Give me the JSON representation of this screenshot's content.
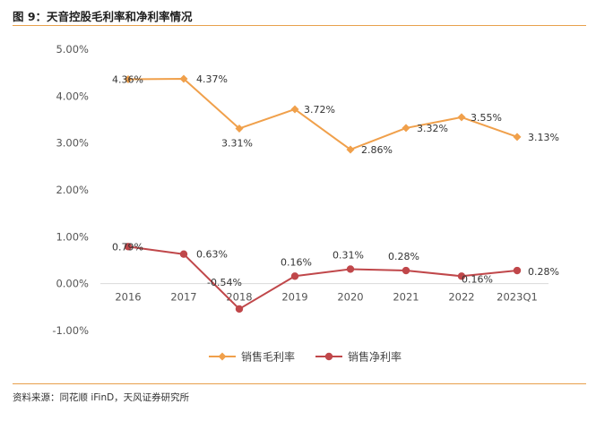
{
  "header": {
    "title": "图 9：天音控股毛利率和净利率情况"
  },
  "footer": {
    "source": "资料来源：同花顺 iFinD，天风证券研究所"
  },
  "colors": {
    "gross": "#f0a04b",
    "net": "#c0474a",
    "rule": "#e8a04c"
  },
  "chart_data": {
    "type": "line",
    "title": "天音控股毛利率和净利率情况",
    "xlabel": "",
    "ylabel": "",
    "categories": [
      "2016",
      "2017",
      "2018",
      "2019",
      "2020",
      "2021",
      "2022",
      "2023Q1"
    ],
    "series": [
      {
        "name": "销售毛利率",
        "values": [
          4.36,
          4.37,
          3.31,
          3.72,
          2.86,
          3.32,
          3.55,
          3.13
        ],
        "labels": [
          "4.36%",
          "4.37%",
          "3.31%",
          "3.72%",
          "2.86%",
          "3.32%",
          "3.55%",
          "3.13%"
        ]
      },
      {
        "name": "销售净利率",
        "values": [
          0.79,
          0.63,
          -0.54,
          0.16,
          0.31,
          0.28,
          0.16,
          0.28
        ],
        "labels": [
          "0.79%",
          "0.63%",
          "-0.54%",
          "0.16%",
          "0.31%",
          "0.28%",
          "0.16%",
          "0.28%"
        ]
      }
    ],
    "ylim": [
      -1.0,
      5.0
    ],
    "yticks": [
      5.0,
      4.0,
      3.0,
      2.0,
      1.0,
      0.0,
      -1.0
    ],
    "ytick_labels": [
      "5.00%",
      "4.00%",
      "3.00%",
      "2.00%",
      "1.00%",
      "0.00%",
      "-1.00%"
    ],
    "grid": false,
    "legend_position": "bottom-center"
  }
}
